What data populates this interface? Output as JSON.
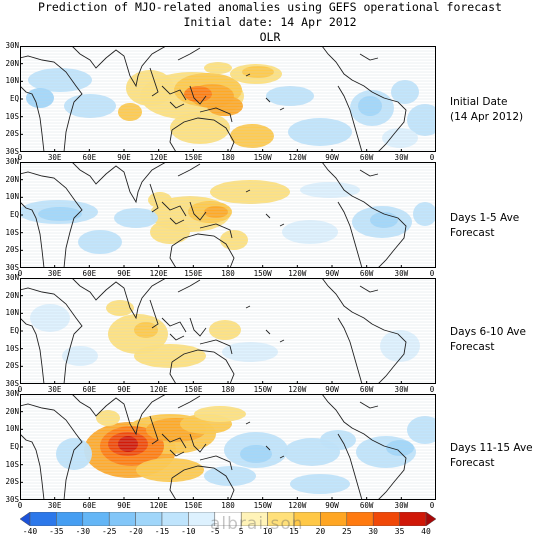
{
  "title": {
    "line1": "Prediction of MJO-related anomalies using GEFS operational forecast",
    "line2": "Initial date: 14 Apr 2012",
    "line3": "OLR"
  },
  "axes": {
    "lat_labels": [
      "30N",
      "20N",
      "10N",
      "EQ",
      "10S",
      "20S",
      "30S"
    ],
    "lon_labels": [
      "0",
      "30E",
      "60E",
      "90E",
      "120E",
      "150E",
      "180",
      "150W",
      "120W",
      "90W",
      "60W",
      "30W",
      "0"
    ]
  },
  "panels": [
    {
      "label_line1": "Initial Date",
      "label_line2": "(14 Apr 2012)"
    },
    {
      "label_line1": "Days 1-5 Ave",
      "label_line2": "Forecast"
    },
    {
      "label_line1": "Days 6-10 Ave",
      "label_line2": "Forecast"
    },
    {
      "label_line1": "Days 11-15 Ave",
      "label_line2": "Forecast"
    }
  ],
  "colorbar": {
    "labels": [
      "-40",
      "-35",
      "-30",
      "-25",
      "-20",
      "-15",
      "-10",
      "-5",
      "5",
      "10",
      "15",
      "20",
      "25",
      "30",
      "35",
      "40"
    ],
    "colors": [
      "#1c52d8",
      "#2c78ea",
      "#469ef2",
      "#64b6f6",
      "#82c6f8",
      "#a0d6fa",
      "#bfe4fc",
      "#ddf1fe",
      "#ffffff",
      "#fff3b8",
      "#ffe07a",
      "#ffc847",
      "#ffa623",
      "#ff7a10",
      "#f04808",
      "#d01808",
      "#a60808"
    ]
  },
  "watermark": "albrai.son"
}
